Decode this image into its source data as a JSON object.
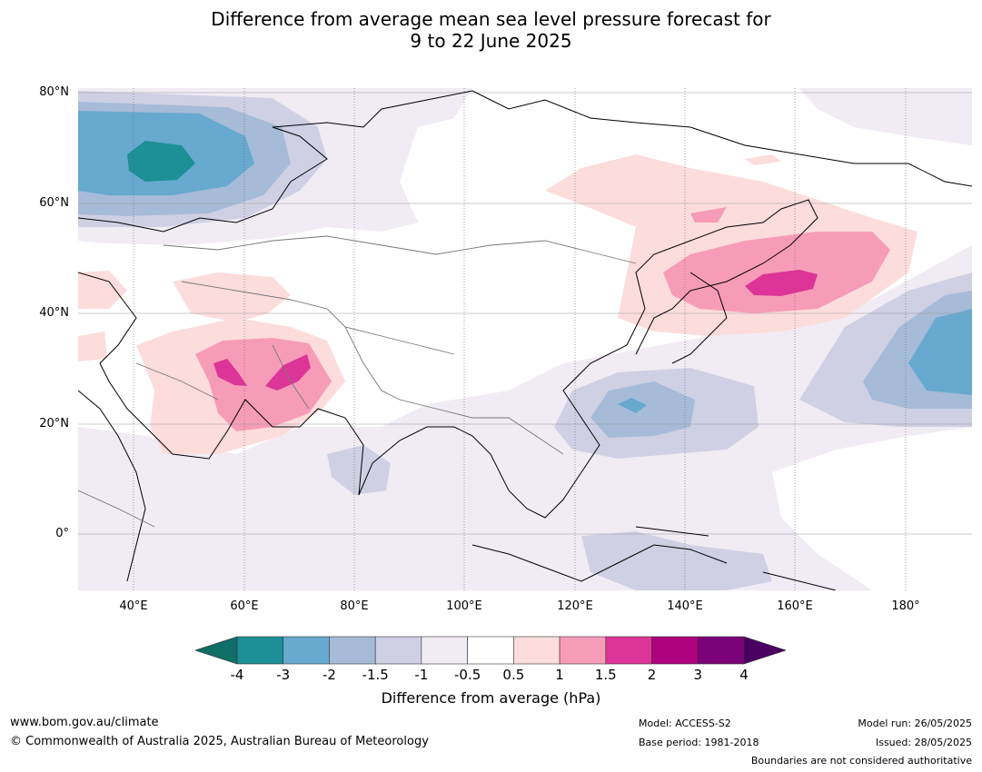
{
  "title_line1": "Difference from average mean sea level pressure forecast for",
  "title_line2": "9 to 22 June 2025",
  "lat_labels": [
    "80°N",
    "60°N",
    "40°N",
    "20°N",
    "0°"
  ],
  "lon_labels": [
    "40°E",
    "60°E",
    "80°E",
    "100°E",
    "120°E",
    "140°E",
    "160°E",
    "180°"
  ],
  "colorbar": {
    "ticks": [
      "-4",
      "-3",
      "-2",
      "-1.5",
      "-1",
      "-0.5",
      "0.5",
      "1",
      "1.5",
      "2",
      "3",
      "4"
    ],
    "colors": [
      "#0f6e66",
      "#1d8f96",
      "#67a9cf",
      "#a6bbd8",
      "#cfd0e4",
      "#f1ebf4",
      "#ffffff",
      "#fddcdc",
      "#f79cb8",
      "#dd3497",
      "#ae017e",
      "#7a0177",
      "#4a0060"
    ],
    "label": "Difference from average (hPa)"
  },
  "footer": {
    "website": "www.bom.gov.au/climate",
    "copyright": "© Commonwealth of Australia 2025, Australian Bureau of Meteorology",
    "model": "Model: ACCESS-S2",
    "base_period": "Base period: 1981-2018",
    "model_run": "Model run: 26/05/2025",
    "issued": "Issued: 28/05/2025",
    "disclaimer": "Boundaries are not considered authoritative"
  }
}
